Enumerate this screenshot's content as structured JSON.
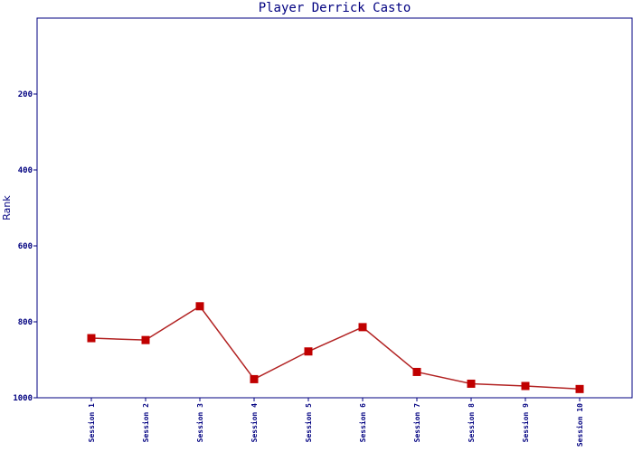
{
  "chart_data": {
    "type": "line",
    "title": "Player Derrick Casto",
    "xlabel": "",
    "ylabel": "Rank",
    "y_inverted": true,
    "ylim": [
      0,
      1000
    ],
    "yticks": [
      200,
      400,
      600,
      800,
      1000
    ],
    "grid": false,
    "legend": "none",
    "categories": [
      "Session 1",
      "Session 2",
      "Session 3",
      "Session 4",
      "Session 5",
      "Session 6",
      "Session 7",
      "Session 8",
      "Session 9",
      "Session 10"
    ],
    "series": [
      {
        "values": [
          843,
          848,
          759,
          951,
          878,
          814,
          932,
          963,
          969,
          977
        ],
        "color": "#b22222",
        "marker_color": "#c00000"
      }
    ]
  },
  "colors": {
    "axis": "#000080",
    "line": "#b22222",
    "marker": "#c00000"
  }
}
